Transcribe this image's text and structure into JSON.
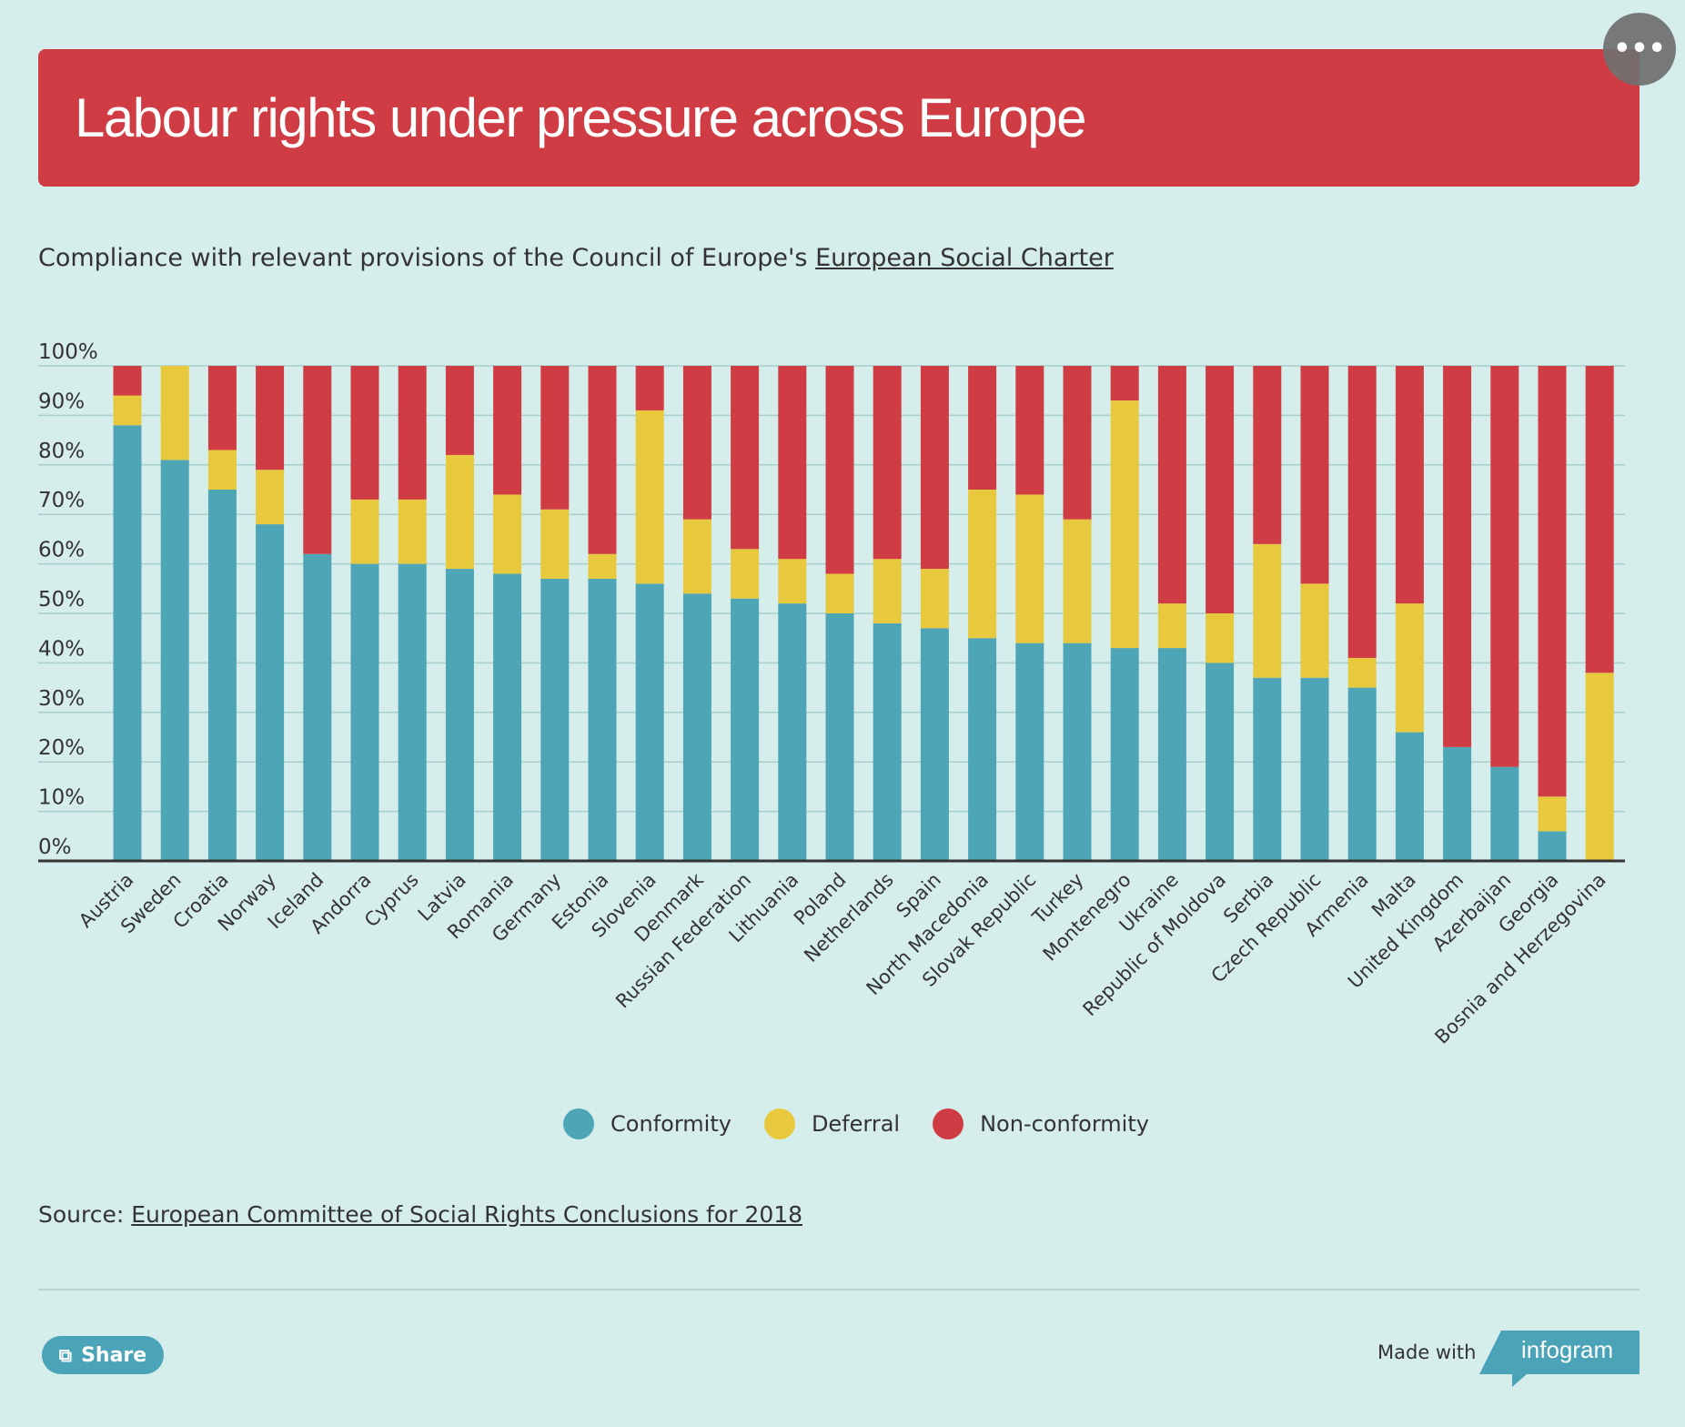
{
  "header": {
    "title": "Labour rights under pressure across Europe"
  },
  "menu": {
    "icon": "more-dots-icon",
    "label": "•••"
  },
  "subtitle": {
    "text": "Compliance with relevant provisions of the Council of Europe's ",
    "link": "European Social Charter"
  },
  "chart_data": {
    "type": "bar",
    "stacked": true,
    "categories": [
      "Austria",
      "Sweden",
      "Croatia",
      "Norway",
      "Iceland",
      "Andorra",
      "Cyprus",
      "Latvia",
      "Romania",
      "Germany",
      "Estonia",
      "Slovenia",
      "Denmark",
      "Russian Federation",
      "Lithuania",
      "Poland",
      "Netherlands",
      "Spain",
      "North Macedonia",
      "Slovak Republic",
      "Turkey",
      "Montenegro",
      "Ukraine",
      "Republic of Moldova",
      "Serbia",
      "Czech Republic",
      "Armenia",
      "Malta",
      "United Kingdom",
      "Azerbaijan",
      "Georgia",
      "Bosnia and Herzegovina"
    ],
    "series": [
      {
        "name": "Conformity",
        "color": "#4ea5b6",
        "values": [
          88,
          81,
          75,
          68,
          62,
          60,
          60,
          59,
          58,
          57,
          57,
          56,
          54,
          53,
          52,
          50,
          48,
          47,
          45,
          44,
          44,
          43,
          43,
          40,
          37,
          37,
          35,
          26,
          23,
          19,
          6,
          0
        ]
      },
      {
        "name": "Deferral",
        "color": "#e8c93e",
        "values": [
          6,
          19,
          8,
          11,
          0,
          13,
          13,
          23,
          16,
          14,
          5,
          35,
          15,
          10,
          9,
          8,
          13,
          12,
          30,
          30,
          25,
          50,
          9,
          10,
          27,
          19,
          6,
          26,
          0,
          0,
          7,
          38
        ]
      },
      {
        "name": "Non-conformity",
        "color": "#d03c43",
        "values": [
          6,
          0,
          17,
          21,
          38,
          27,
          27,
          18,
          26,
          29,
          38,
          9,
          31,
          37,
          39,
          42,
          39,
          41,
          25,
          26,
          31,
          7,
          48,
          50,
          36,
          44,
          59,
          48,
          77,
          81,
          87,
          62
        ]
      }
    ],
    "yticks": [
      "0%",
      "10%",
      "20%",
      "30%",
      "40%",
      "50%",
      "60%",
      "70%",
      "80%",
      "90%",
      "100%"
    ],
    "ylim": [
      0,
      100
    ],
    "grid": true,
    "legend_position": "bottom"
  },
  "source": {
    "prefix": "Source: ",
    "link": "European Committee of Social Rights Conclusions for 2018"
  },
  "footer": {
    "share_label": "Share",
    "share_icon": "share-icon",
    "made_with": "Made with",
    "brand": "infogram"
  }
}
